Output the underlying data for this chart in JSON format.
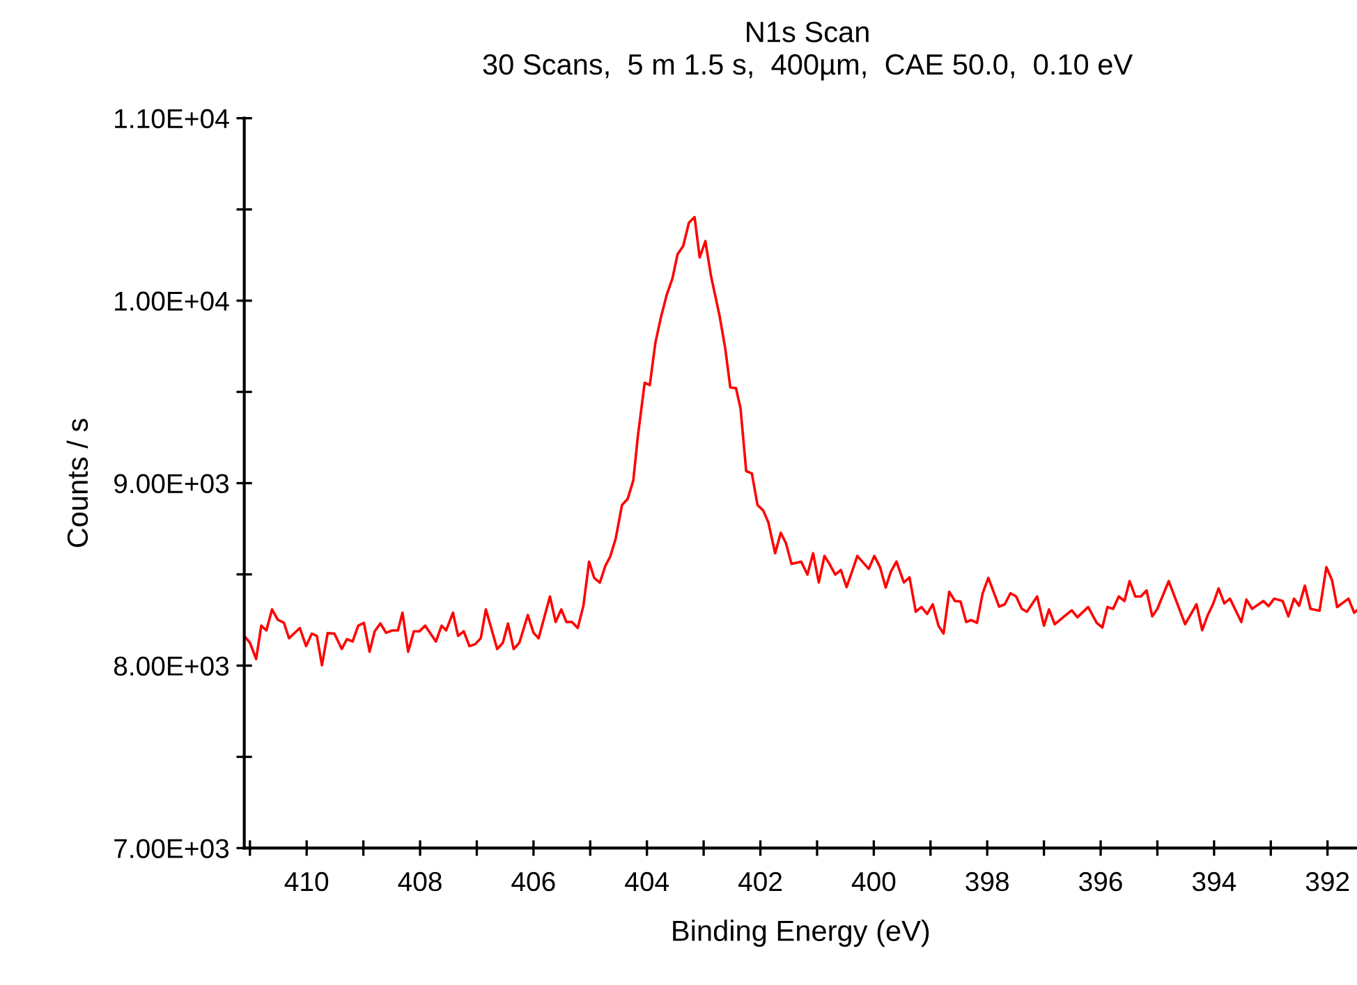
{
  "chart_data": {
    "type": "line",
    "title": "N1s Scan",
    "subtitle": "30 Scans,  5 m 1.5 s,  400µm,  CAE 50.0,  0.10 eV",
    "xlabel": "Binding Energy (eV)",
    "ylabel": "Counts / s",
    "xlim": [
      411.1,
      391.48
    ],
    "xticks": [
      {
        "value": 411,
        "label": null
      },
      410,
      {
        "value": 409,
        "label": null
      },
      408,
      {
        "value": 407,
        "label": null
      },
      406,
      {
        "value": 405,
        "label": null
      },
      404,
      {
        "value": 403,
        "label": null
      },
      402,
      {
        "value": 401,
        "label": null
      },
      400,
      {
        "value": 399,
        "label": null
      },
      398,
      {
        "value": 397,
        "label": null
      },
      396,
      {
        "value": 395,
        "label": null
      },
      394,
      {
        "value": 393,
        "label": null
      },
      392
    ],
    "ylim": [
      7000,
      11000
    ],
    "yticks": [
      {
        "value": 7000,
        "label": "7.00E+03"
      },
      {
        "value": 7500,
        "label": null
      },
      {
        "value": 8000,
        "label": "8.00E+03"
      },
      {
        "value": 8500,
        "label": null
      },
      {
        "value": 9000,
        "label": "9.00E+03"
      },
      {
        "value": 9500,
        "label": null
      },
      {
        "value": 10000,
        "label": "1.00E+04"
      },
      {
        "value": 10500,
        "label": null
      },
      {
        "value": 11000,
        "label": "1.10E+04"
      }
    ],
    "grid": false,
    "legend": false,
    "marker": "none",
    "line_style": "solid",
    "series": [
      {
        "color": "#ff0000",
        "x": [
          411.1,
          411.0,
          410.89,
          410.8,
          410.71,
          410.61,
          410.51,
          410.4,
          410.31,
          410.12,
          410.01,
          409.91,
          409.82,
          409.73,
          409.63,
          409.51,
          409.38,
          409.29,
          409.19,
          409.09,
          408.99,
          408.89,
          408.8,
          408.7,
          408.6,
          408.49,
          408.39,
          408.31,
          408.21,
          408.11,
          408.01,
          407.91,
          407.72,
          407.62,
          407.54,
          407.42,
          407.33,
          407.23,
          407.13,
          407.03,
          406.93,
          406.84,
          406.64,
          406.54,
          406.45,
          406.35,
          406.25,
          406.1,
          406.0,
          405.91,
          405.71,
          405.61,
          405.51,
          405.42,
          405.32,
          405.22,
          405.12,
          405.02,
          404.93,
          404.83,
          404.73,
          404.65,
          404.55,
          404.44,
          404.34,
          404.24,
          404.16,
          404.04,
          403.95,
          403.85,
          403.75,
          403.65,
          403.55,
          403.46,
          403.36,
          403.26,
          403.16,
          403.07,
          402.97,
          402.87,
          402.72,
          402.62,
          402.53,
          402.43,
          402.35,
          402.25,
          402.15,
          402.05,
          401.95,
          401.86,
          401.74,
          401.64,
          401.55,
          401.45,
          401.28,
          401.17,
          401.07,
          400.97,
          400.87,
          400.78,
          400.68,
          400.58,
          400.48,
          400.38,
          400.29,
          400.09,
          399.99,
          399.89,
          399.79,
          399.7,
          399.6,
          399.47,
          399.37,
          399.26,
          399.16,
          399.06,
          398.96,
          398.86,
          398.77,
          398.67,
          398.57,
          398.47,
          398.37,
          398.28,
          398.18,
          398.08,
          397.98,
          397.79,
          397.69,
          397.59,
          397.49,
          397.39,
          397.3,
          397.12,
          397.0,
          396.91,
          396.81,
          396.51,
          396.41,
          396.22,
          396.07,
          395.97,
          395.88,
          395.78,
          395.68,
          395.58,
          395.49,
          395.39,
          395.29,
          395.19,
          395.09,
          395.0,
          394.8,
          394.51,
          394.31,
          394.21,
          394.11,
          394.02,
          393.92,
          393.82,
          393.72,
          393.52,
          393.43,
          393.33,
          393.13,
          393.04,
          392.94,
          392.79,
          392.69,
          392.59,
          392.5,
          392.4,
          392.3,
          392.14,
          392.02,
          391.92,
          391.83,
          391.63,
          391.53,
          391.48
        ],
        "values": [
          8163,
          8125,
          8036,
          8219,
          8193,
          8308,
          8252,
          8234,
          8150,
          8206,
          8107,
          8175,
          8163,
          8002,
          8178,
          8175,
          8091,
          8145,
          8132,
          8219,
          8234,
          8076,
          8188,
          8231,
          8180,
          8193,
          8193,
          8290,
          8076,
          8188,
          8188,
          8219,
          8132,
          8219,
          8193,
          8290,
          8163,
          8188,
          8107,
          8117,
          8150,
          8308,
          8091,
          8125,
          8231,
          8091,
          8125,
          8277,
          8180,
          8150,
          8379,
          8239,
          8308,
          8239,
          8239,
          8206,
          8328,
          8570,
          8481,
          8455,
          8549,
          8595,
          8697,
          8880,
          8913,
          9015,
          9257,
          9550,
          9537,
          9771,
          9913,
          10033,
          10122,
          10254,
          10300,
          10427,
          10458,
          10237,
          10326,
          10135,
          9918,
          9740,
          9524,
          9521,
          9410,
          9066,
          9053,
          8880,
          8850,
          8786,
          8616,
          8728,
          8672,
          8557,
          8570,
          8499,
          8616,
          8456,
          8601,
          8557,
          8499,
          8524,
          8430,
          8519,
          8601,
          8530,
          8601,
          8540,
          8428,
          8514,
          8570,
          8456,
          8484,
          8295,
          8321,
          8283,
          8336,
          8219,
          8176,
          8405,
          8354,
          8351,
          8239,
          8250,
          8234,
          8397,
          8481,
          8323,
          8336,
          8397,
          8379,
          8311,
          8295,
          8379,
          8219,
          8308,
          8227,
          8303,
          8265,
          8321,
          8234,
          8209,
          8321,
          8311,
          8379,
          8354,
          8463,
          8379,
          8379,
          8412,
          8270,
          8311,
          8463,
          8227,
          8336,
          8194,
          8278,
          8336,
          8423,
          8341,
          8367,
          8239,
          8362,
          8311,
          8354,
          8326,
          8367,
          8354,
          8270,
          8367,
          8328,
          8438,
          8311,
          8301,
          8540,
          8468,
          8321,
          8367,
          8290,
          8303
        ]
      }
    ]
  }
}
